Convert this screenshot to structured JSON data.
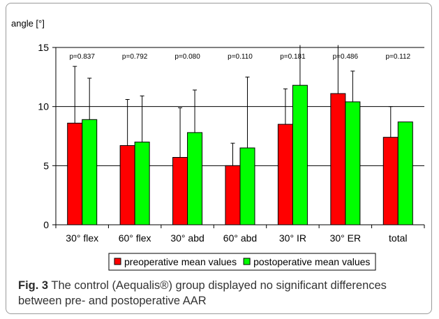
{
  "chart_data": {
    "type": "bar",
    "ylabel": "angle [°]",
    "ylim": [
      0,
      15
    ],
    "yticks": [
      0,
      5,
      10,
      15
    ],
    "grid": "horizontal",
    "legend_position": "bottom",
    "categories": [
      "30° flex",
      "60° flex",
      "30° abd",
      "60° abd",
      "30° IR",
      "30° ER",
      "total"
    ],
    "p_values": [
      "p=0.837",
      "p=0.792",
      "p=0.080",
      "p=0.110",
      "p=0.181",
      "p=0.486",
      "p=0.112"
    ],
    "series": [
      {
        "name": "preoperative mean values",
        "color": "#ff0000",
        "values": [
          8.6,
          6.7,
          5.7,
          5.0,
          8.5,
          11.1,
          7.4
        ],
        "error_upper": [
          13.4,
          10.6,
          9.9,
          6.9,
          11.5,
          15.2,
          10.0
        ]
      },
      {
        "name": "postoperative mean values",
        "color": "#00ff00",
        "values": [
          8.9,
          7.0,
          7.8,
          6.5,
          11.8,
          10.4,
          8.7
        ],
        "error_upper": [
          12.4,
          10.9,
          11.4,
          12.5,
          15.2,
          13.0,
          null
        ]
      }
    ]
  },
  "caption": {
    "label": "Fig. 3",
    "text": " The control (Aequalis®) group displayed no significant differences between pre- and postoperative AAR"
  }
}
